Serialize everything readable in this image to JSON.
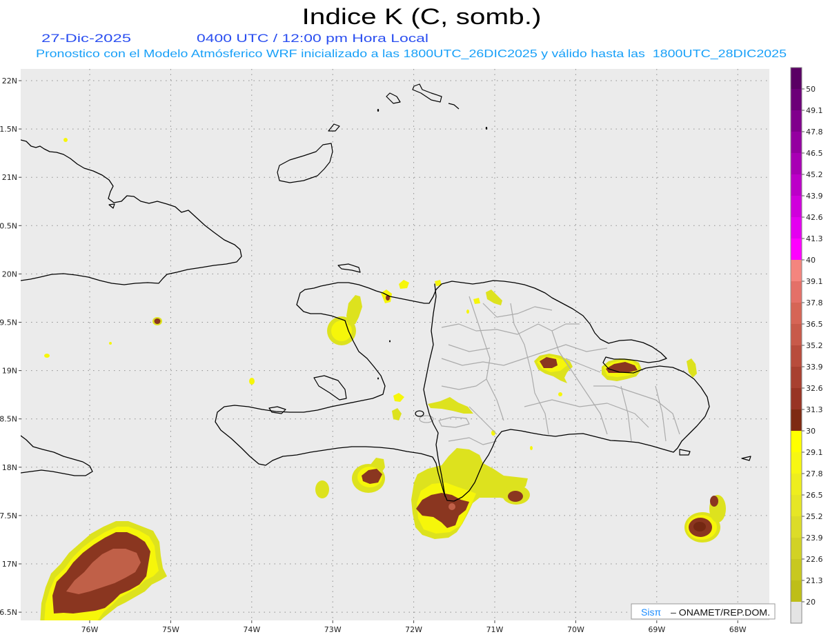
{
  "title": "Indice K (C, somb.)",
  "header": {
    "date": "27-Dic-2025",
    "time": "0400 UTC / 12:00 pm Hora Local",
    "description": "Pronostico con el Modelo Atmósferico WRF inicializado a las 1800UTC_26DIC2025 y válido hasta las  1800UTC_28DIC2025"
  },
  "map": {
    "lat_labels": [
      "22N",
      "1.5N",
      "21N",
      "0.5N",
      "20N",
      "9.5N",
      "19N",
      "8.5N",
      "18N",
      "7.5N",
      "17N",
      "6.5N"
    ],
    "lon_labels": [
      "76W",
      "75W",
      "74W",
      "73W",
      "72W",
      "71W",
      "70W",
      "69W",
      "68W"
    ],
    "background_color": "#EBEBEB"
  },
  "colorbar": {
    "labels": [
      "50",
      "49.1",
      "47.8",
      "46.5",
      "45.2",
      "43.9",
      "42.6",
      "41.3",
      "40",
      "39.1",
      "37.8",
      "36.5",
      "35.2",
      "33.9",
      "32.6",
      "31.3",
      "30",
      "29.1",
      "27.8",
      "26.5",
      "25.2",
      "23.9",
      "22.6",
      "21.3",
      "20"
    ],
    "colors": [
      "#5A0064",
      "#6C0078",
      "#80008C",
      "#9400A0",
      "#A800B4",
      "#BC00C8",
      "#D000DC",
      "#E400F0",
      "#FF00FF",
      "#F4857E",
      "#E47068",
      "#D66556",
      "#C85A4A",
      "#B84C3C",
      "#A84030",
      "#983424",
      "#7E2A12",
      "#FFFF00",
      "#F7F713",
      "#EEEE1E",
      "#E6E625",
      "#DCDC28",
      "#D2D225",
      "#C8C820",
      "#BEBE18",
      "#E4E4E4"
    ]
  },
  "credit": {
    "brand": "Sisπ",
    "text": "– ONAMET/REP.DOM."
  }
}
